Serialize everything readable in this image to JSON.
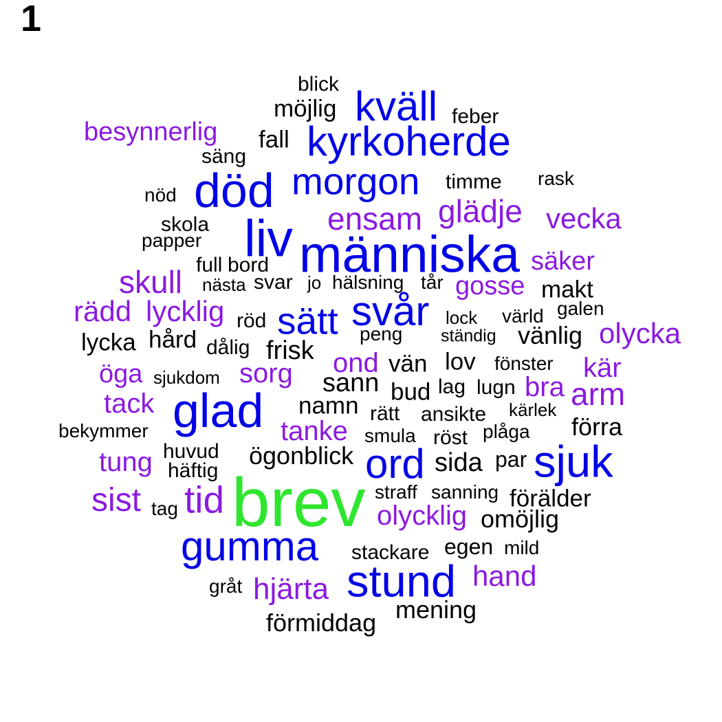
{
  "panel_label": "1",
  "colors": {
    "green": "#2fe62f",
    "blue": "#0000e6",
    "purple": "#8a1ae0",
    "black": "#000000"
  },
  "words": {
    "blick": "blick",
    "mojlig": "möjlig",
    "kvall": "kväll",
    "feber": "feber",
    "besynnerlig": "besynnerlig",
    "fall": "fall",
    "kyrkoherde": "kyrkoherde",
    "sang": "säng",
    "dod": "död",
    "morgon": "morgon",
    "timme": "timme",
    "rask": "rask",
    "nod": "nöd",
    "ensam": "ensam",
    "gladje": "glädje",
    "vecka": "vecka",
    "skola": "skola",
    "papper": "papper",
    "liv": "liv",
    "manniska": "människa",
    "saker": "säker",
    "full": "full",
    "bord": "bord",
    "skull": "skull",
    "nasta": "nästa",
    "svar": "svar",
    "jo": "jo",
    "halsning": "hälsning",
    "tar": "tår",
    "gosse": "gosse",
    "makt": "makt",
    "radd": "rädd",
    "lycklig": "lycklig",
    "rod": "röd",
    "satt": "sätt",
    "svar2": "svår",
    "lock": "lock",
    "varld": "värld",
    "galen": "galen",
    "olycka": "olycka",
    "lycka": "lycka",
    "hard": "hård",
    "dalig": "dålig",
    "frisk": "frisk",
    "peng": "peng",
    "standig": "ständig",
    "vanlig": "vänlig",
    "ond": "ond",
    "van": "vän",
    "lov": "lov",
    "fonster": "fönster",
    "kar": "kär",
    "oga": "öga",
    "sjukdom": "sjukdom",
    "sorg": "sorg",
    "sann": "sann",
    "bud": "bud",
    "lag": "lag",
    "lugn": "lugn",
    "bra": "bra",
    "arm": "arm",
    "tack": "tack",
    "glad": "glad",
    "namn": "namn",
    "ratt": "rätt",
    "ansikte": "ansikte",
    "karlek": "kärlek",
    "bekymmer": "bekymmer",
    "tanke": "tanke",
    "smula": "smula",
    "rost": "röst",
    "plaga": "plåga",
    "forra": "förra",
    "tung": "tung",
    "huvud": "huvud",
    "haftig": "häftig",
    "ogonblick": "ögonblick",
    "ord": "ord",
    "sida": "sida",
    "par": "par",
    "sjuk": "sjuk",
    "sist": "sist",
    "tag": "tag",
    "tid": "tid",
    "brev": "brev",
    "straff": "straff",
    "sanning": "sanning",
    "foralder": "förälder",
    "olycklig": "olycklig",
    "omojlig": "omöjlig",
    "gumma": "gumma",
    "stackare": "stackare",
    "egen": "egen",
    "mild": "mild",
    "grat": "gråt",
    "hjarta": "hjärta",
    "stund": "stund",
    "hand": "hand",
    "mening": "mening",
    "formiddag": "förmiddag"
  }
}
